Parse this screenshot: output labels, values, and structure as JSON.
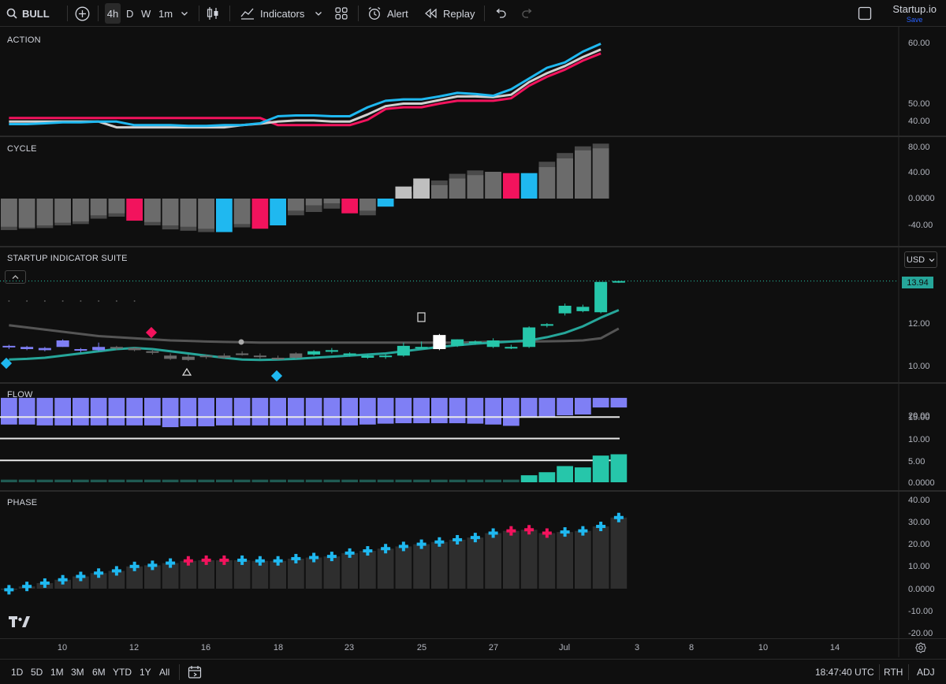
{
  "toolbar": {
    "symbol": "BULL",
    "timeframes": [
      "4h",
      "D",
      "W",
      "1m"
    ],
    "indicators_label": "Indicators",
    "alert_label": "Alert",
    "replay_label": "Replay",
    "layout_name": "Startup.io",
    "save_label": "Save"
  },
  "panes": {
    "action": {
      "title": "ACTION",
      "axis": [
        "60.00",
        "50.00",
        "40.00"
      ]
    },
    "cycle": {
      "title": "CYCLE",
      "axis": [
        "80.00",
        "40.00",
        "0.0000",
        "-40.00"
      ]
    },
    "suite": {
      "title": "STARTUP INDICATOR SUITE",
      "axis": [
        "12.00",
        "10.00"
      ],
      "currency": "USD",
      "last_price": "13.94"
    },
    "flow": {
      "title": "FLOW",
      "axis": [
        "20.00",
        "15.00",
        "10.00",
        "5.00",
        "0.0000"
      ]
    },
    "phase": {
      "title": "PHASE",
      "axis": [
        "40.00",
        "30.00",
        "20.00",
        "10.00",
        "0.0000",
        "-10.00",
        "-20.00"
      ]
    }
  },
  "date_axis": [
    "10",
    "12",
    "16",
    "18",
    "23",
    "25",
    "27",
    "Jul",
    "3",
    "8",
    "10",
    "14"
  ],
  "bottom_bar": {
    "ranges": [
      "1D",
      "5D",
      "1M",
      "3M",
      "6M",
      "YTD",
      "1Y",
      "All"
    ],
    "clock": "18:47:40 UTC",
    "session": "RTH",
    "adj": "ADJ"
  },
  "colors": {
    "background": "#0f0f0f",
    "cyan": "#1fb8f0",
    "magenta": "#f2135d",
    "teal": "#26c6aa",
    "purple": "#7f7ff5",
    "gray_bar": "#6b6b6b",
    "light_gray_bar": "#bfbfbf",
    "dark_bar": "#2e2e2e"
  },
  "chart_data": [
    {
      "type": "line",
      "title": "ACTION",
      "ylim": [
        37,
        64
      ],
      "series": [
        {
          "color": "#1fb8f0",
          "values": [
            38.8,
            38.8,
            39.0,
            39.3,
            39.3,
            39.5,
            39.5,
            38.5,
            38.5,
            38.5,
            38.3,
            38.3,
            38.5,
            38.5,
            39.0,
            41.0,
            41.2,
            41.2,
            41.0,
            41.0,
            43.5,
            45.3,
            45.7,
            45.7,
            46.5,
            47.5,
            47.2,
            46.7,
            48.5,
            51.5,
            54.5,
            56.0,
            59.0,
            61.2
          ]
        },
        {
          "color": "#d0d0d0",
          "values": [
            39.5,
            39.5,
            39.5,
            39.5,
            39.5,
            39.5,
            37.9,
            37.9,
            37.9,
            37.9,
            37.9,
            37.9,
            37.9,
            38.5,
            38.9,
            39.5,
            39.8,
            39.8,
            39.5,
            39.5,
            41.5,
            43.8,
            44.5,
            44.5,
            45.5,
            46.5,
            46.5,
            46.3,
            47.0,
            50.5,
            53.0,
            55.0,
            57.5,
            59.6
          ]
        },
        {
          "color": "#f2135d",
          "values": [
            40.5,
            40.5,
            40.5,
            40.5,
            40.5,
            40.5,
            40.5,
            40.5,
            40.5,
            40.5,
            40.5,
            40.5,
            40.5,
            40.5,
            40.5,
            38.5,
            38.5,
            38.5,
            38.5,
            38.5,
            40.0,
            43.0,
            43.5,
            43.5,
            44.5,
            45.3,
            45.3,
            45.3,
            46.0,
            49.5,
            52.0,
            54.0,
            56.5,
            58.5
          ]
        }
      ]
    },
    {
      "type": "bar",
      "title": "CYCLE",
      "ylim": [
        -55,
        90
      ],
      "values_outer": [
        -47,
        -45,
        -44,
        -40,
        -38,
        -30,
        -27,
        -33,
        -40,
        -46,
        -48,
        -50,
        -50,
        -43,
        -45,
        -40,
        -25,
        -20,
        -15,
        -22,
        -25,
        -12,
        18,
        30,
        27,
        37,
        42,
        40,
        38,
        38,
        55,
        68,
        78,
        82
      ],
      "values_inner": [
        -42,
        -43,
        -40,
        -36,
        -34,
        -25,
        -22,
        -28,
        -35,
        -40,
        -42,
        -45,
        -45,
        -38,
        -40,
        -35,
        -18,
        -10,
        -7,
        -15,
        -18,
        -5,
        10,
        20,
        20,
        30,
        35,
        40,
        38,
        38,
        47,
        60,
        72,
        75
      ],
      "bar_colors": [
        "gray",
        "gray",
        "gray",
        "gray",
        "gray",
        "gray",
        "gray",
        "magenta",
        "gray",
        "gray",
        "gray",
        "gray",
        "cyan",
        "gray",
        "magenta",
        "cyan",
        "gray",
        "gray",
        "gray",
        "magenta",
        "gray",
        "cyan",
        "light",
        "light",
        "gray",
        "gray",
        "gray",
        "gray",
        "magenta",
        "cyan",
        "gray",
        "gray",
        "gray",
        "gray"
      ]
    },
    {
      "type": "candlestick",
      "title": "STARTUP INDICATOR SUITE",
      "ylim": [
        9.5,
        14.5
      ],
      "last": 13.94,
      "ohlc": [
        [
          10.9,
          11.0,
          10.8,
          10.95
        ],
        [
          10.8,
          10.95,
          10.75,
          10.9
        ],
        [
          10.85,
          10.9,
          10.7,
          10.75
        ],
        [
          10.9,
          11.25,
          10.9,
          11.2
        ],
        [
          10.75,
          10.85,
          10.65,
          10.8
        ],
        [
          10.75,
          11.1,
          10.7,
          10.9
        ],
        [
          10.85,
          10.95,
          10.75,
          10.9
        ],
        [
          10.85,
          10.9,
          10.7,
          10.75
        ],
        [
          10.7,
          10.8,
          10.55,
          10.65
        ],
        [
          10.5,
          10.6,
          10.3,
          10.35
        ],
        [
          10.45,
          10.55,
          10.25,
          10.3
        ],
        [
          10.5,
          10.55,
          10.35,
          10.45
        ],
        [
          10.4,
          10.6,
          10.35,
          10.5
        ],
        [
          10.55,
          10.7,
          10.5,
          10.6
        ],
        [
          10.5,
          10.6,
          10.35,
          10.45
        ],
        [
          10.4,
          10.5,
          10.3,
          10.35
        ],
        [
          10.4,
          10.65,
          10.35,
          10.6
        ],
        [
          10.55,
          10.75,
          10.5,
          10.7
        ],
        [
          10.7,
          10.85,
          10.6,
          10.75
        ],
        [
          10.55,
          10.65,
          10.45,
          10.6
        ],
        [
          10.4,
          10.55,
          10.35,
          10.5
        ],
        [
          10.45,
          10.55,
          10.35,
          10.5
        ],
        [
          10.5,
          11.1,
          10.45,
          10.95
        ],
        [
          10.9,
          11.15,
          10.85,
          10.9
        ],
        [
          10.8,
          11.5,
          10.75,
          11.45
        ],
        [
          10.95,
          11.25,
          10.9,
          11.25
        ],
        [
          11.1,
          11.2,
          11.0,
          11.15
        ],
        [
          10.9,
          11.3,
          10.85,
          11.2
        ],
        [
          10.9,
          11.0,
          10.8,
          10.85
        ],
        [
          10.9,
          11.85,
          10.85,
          11.8
        ],
        [
          11.9,
          12.0,
          11.8,
          11.95
        ],
        [
          12.45,
          12.9,
          12.35,
          12.8
        ],
        [
          12.55,
          12.85,
          12.5,
          12.75
        ],
        [
          12.5,
          13.9,
          12.45,
          13.9
        ],
        [
          13.9,
          13.96,
          13.85,
          13.94
        ]
      ],
      "candle_colors": [
        "purple",
        "purple",
        "purple",
        "purple",
        "purple",
        "purple",
        "gray",
        "gray",
        "gray",
        "gray",
        "gray",
        "gray",
        "gray",
        "gray",
        "gray",
        "gray",
        "gray",
        "teal",
        "teal",
        "teal",
        "teal",
        "teal",
        "teal",
        "teal",
        "white",
        "teal",
        "teal",
        "teal",
        "teal",
        "teal",
        "teal",
        "teal",
        "teal",
        "teal",
        "teal"
      ],
      "ma_slow": [
        11.9,
        11.8,
        11.7,
        11.6,
        11.5,
        11.4,
        11.35,
        11.3,
        11.25,
        11.2,
        11.18,
        11.15,
        11.13,
        11.12,
        11.1,
        11.1,
        11.1,
        11.1,
        11.1,
        11.1,
        11.1,
        11.1,
        11.1,
        11.1,
        11.1,
        11.1,
        11.12,
        11.14,
        11.15,
        11.15,
        11.16,
        11.17,
        11.2,
        11.3,
        11.75
      ],
      "ma_fast": [
        10.32,
        10.35,
        10.4,
        10.5,
        10.6,
        10.7,
        10.8,
        10.85,
        10.8,
        10.7,
        10.6,
        10.5,
        10.4,
        10.32,
        10.3,
        10.32,
        10.35,
        10.4,
        10.45,
        10.5,
        10.55,
        10.6,
        10.7,
        10.8,
        10.9,
        10.98,
        11.05,
        11.1,
        11.15,
        11.2,
        11.35,
        11.55,
        11.85,
        12.25,
        12.6
      ]
    },
    {
      "type": "bar",
      "title": "FLOW",
      "ylim": [
        0,
        21
      ],
      "values_top": [
        19.3,
        19.3,
        19.3,
        19.3,
        19.3,
        19.3,
        19.3,
        19.3,
        19.3,
        19.3,
        19.3,
        19.3,
        19.3,
        19.3,
        19.3,
        19.3,
        19.3,
        19.3,
        19.3,
        19.3,
        19.3,
        19.3,
        19.3,
        19.3,
        19.3,
        19.3,
        19.3,
        19.3,
        19.3,
        19.3,
        19.3,
        19.3,
        19.3,
        19.3,
        19.3
      ],
      "values_bottom": [
        13.2,
        13.2,
        13.0,
        13.0,
        13.0,
        13.0,
        13.0,
        13.0,
        13.0,
        12.6,
        12.8,
        12.8,
        13.0,
        13.0,
        13.0,
        13.0,
        13.0,
        13.0,
        13.0,
        13.0,
        13.2,
        13.4,
        13.5,
        13.5,
        13.5,
        13.5,
        13.4,
        13.2,
        12.9,
        14.9,
        15.0,
        15.3,
        15.5,
        17.1,
        17.1
      ],
      "reference_lines": [
        14.9,
        10.0,
        5.0
      ],
      "volume_bars": [
        0.6,
        0.6,
        0.6,
        0.6,
        0.6,
        0.6,
        0.6,
        0.6,
        0.6,
        0.6,
        0.6,
        0.6,
        0.6,
        0.6,
        0.6,
        0.6,
        0.6,
        0.6,
        0.6,
        0.6,
        0.6,
        0.6,
        0.6,
        0.6,
        0.6,
        0.6,
        0.6,
        0.6,
        0.6,
        1.6,
        2.3,
        3.7,
        3.4,
        6.1,
        6.4
      ]
    },
    {
      "type": "bar",
      "title": "PHASE",
      "ylim": [
        -22,
        40
      ],
      "values": [
        -0.5,
        1,
        2.5,
        4,
        5.5,
        7,
        8,
        10,
        10.5,
        11.5,
        12.5,
        12.8,
        12.8,
        12.8,
        12.5,
        12.5,
        13.5,
        14,
        14.5,
        16,
        17,
        18,
        19,
        20,
        21,
        22,
        23,
        25,
        26,
        26.5,
        25,
        25.5,
        26,
        28,
        32
      ],
      "cross_colors": [
        "cyan",
        "cyan",
        "cyan",
        "cyan",
        "cyan",
        "cyan",
        "cyan",
        "cyan",
        "cyan",
        "cyan",
        "magenta",
        "magenta",
        "magenta",
        "cyan",
        "cyan",
        "cyan",
        "cyan",
        "cyan",
        "cyan",
        "cyan",
        "cyan",
        "cyan",
        "cyan",
        "cyan",
        "cyan",
        "cyan",
        "cyan",
        "cyan",
        "magenta",
        "magenta",
        "magenta",
        "cyan",
        "cyan",
        "cyan",
        "cyan"
      ]
    }
  ]
}
